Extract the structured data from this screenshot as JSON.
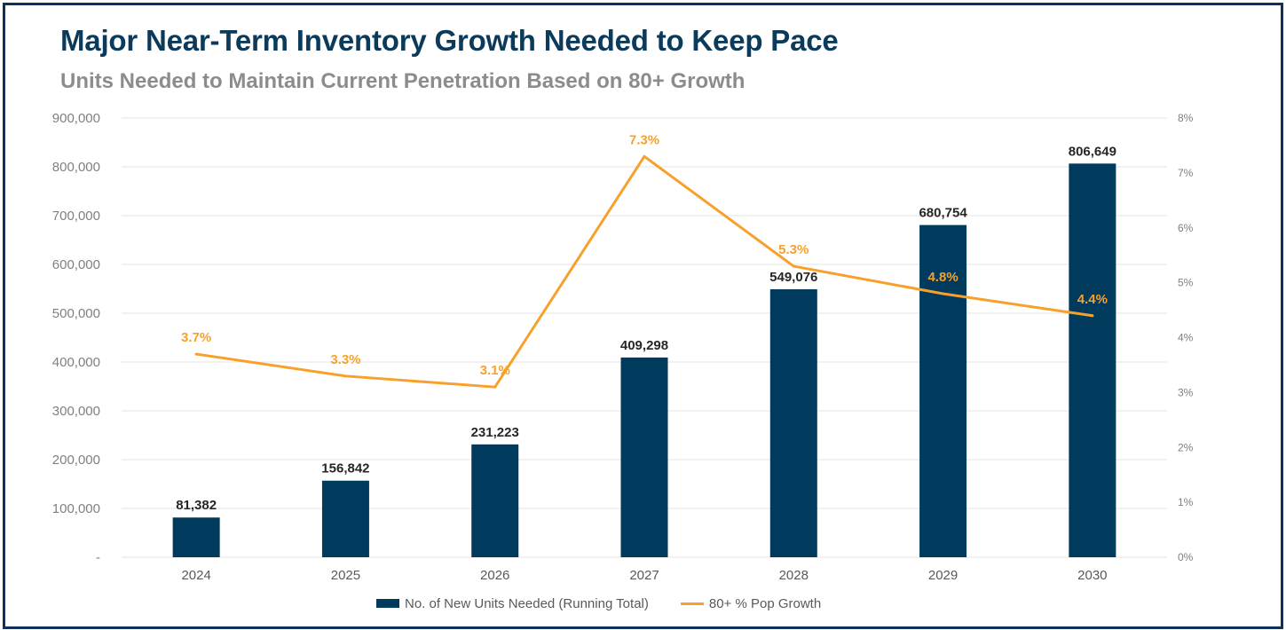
{
  "colors": {
    "bar": "#003a5d",
    "line": "#f7a12c",
    "title": "#0b3a5b",
    "subtitle": "#8c8c8c",
    "axis_text": "#7f7f7f",
    "grid": "#e3e3e3",
    "frame": "#0f2f5c"
  },
  "chart_data": {
    "type": "bar",
    "title": "Major Near-Term Inventory Growth Needed to Keep Pace",
    "subtitle": "Units Needed to Maintain Current Penetration Based on 80+ Growth",
    "categories": [
      "2024",
      "2025",
      "2026",
      "2027",
      "2028",
      "2029",
      "2030"
    ],
    "series": [
      {
        "name": "No. of New Units Needed (Running Total)",
        "type": "bar",
        "axis": "left",
        "values": [
          81382,
          156842,
          231223,
          409298,
          549076,
          680754,
          806649
        ],
        "labels": [
          "81,382",
          "156,842",
          "231,223",
          "409,298",
          "549,076",
          "680,754",
          "806,649"
        ]
      },
      {
        "name": "80+ % Pop Growth",
        "type": "line",
        "axis": "right",
        "values": [
          3.7,
          3.3,
          3.1,
          7.3,
          5.3,
          4.8,
          4.4
        ],
        "labels": [
          "3.7%",
          "3.3%",
          "3.1%",
          "7.3%",
          "5.3%",
          "4.8%",
          "4.4%"
        ]
      }
    ],
    "y_left": {
      "min": 0,
      "max": 900000,
      "ticks": [
        0,
        100000,
        200000,
        300000,
        400000,
        500000,
        600000,
        700000,
        800000,
        900000
      ],
      "tick_labels": [
        "-",
        "100,000",
        "200,000",
        "300,000",
        "400,000",
        "500,000",
        "600,000",
        "700,000",
        "800,000",
        "900,000"
      ]
    },
    "y_right": {
      "min": 0,
      "max": 8,
      "ticks": [
        0,
        1,
        2,
        3,
        4,
        5,
        6,
        7,
        8
      ],
      "tick_labels": [
        "0%",
        "1%",
        "2%",
        "3%",
        "4%",
        "5%",
        "6%",
        "7%",
        "8%"
      ]
    },
    "grid": true,
    "legend_position": "bottom"
  }
}
